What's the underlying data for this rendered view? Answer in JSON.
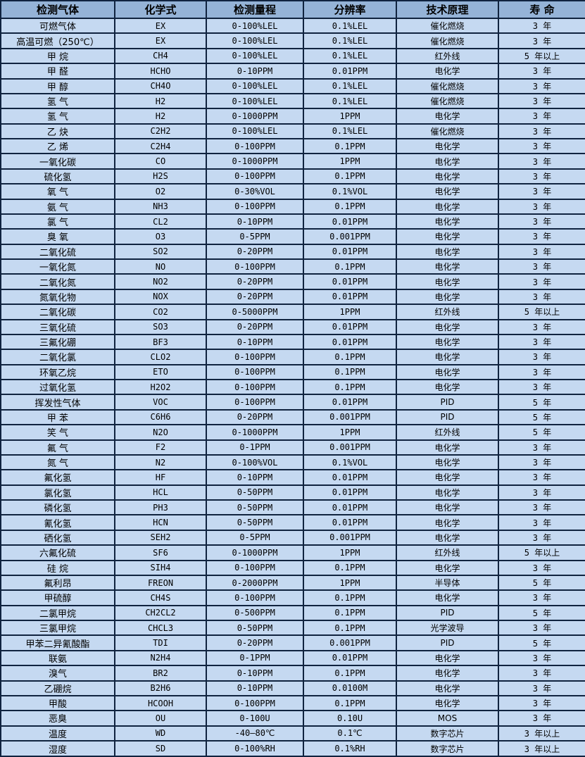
{
  "table": {
    "columns": [
      "检测气体",
      "化学式",
      "检测量程",
      "分辨率",
      "技术原理",
      "寿 命"
    ],
    "rows": [
      [
        "可燃气体",
        "EX",
        "0-100%LEL",
        "0.1%LEL",
        "催化燃烧",
        "3 年"
      ],
      [
        "高温可燃（250℃）",
        "EX",
        "0-100%LEL",
        "0.1%LEL",
        "催化燃烧",
        "3 年"
      ],
      [
        "甲 烷",
        "CH4",
        "0-100%LEL",
        "0.1%LEL",
        "红外线",
        "5 年以上"
      ],
      [
        "甲 醛",
        "HCHO",
        "0-10PPM",
        "0.01PPM",
        "电化学",
        "3 年"
      ],
      [
        "甲 醇",
        "CH4O",
        "0-100%LEL",
        "0.1%LEL",
        "催化燃烧",
        "3 年"
      ],
      [
        "氢 气",
        "H2",
        "0-100%LEL",
        "0.1%LEL",
        "催化燃烧",
        "3 年"
      ],
      [
        "氢 气",
        "H2",
        "0-1000PPM",
        "1PPM",
        "电化学",
        "3 年"
      ],
      [
        "乙 炔",
        "C2H2",
        "0-100%LEL",
        "0.1%LEL",
        "催化燃烧",
        "3 年"
      ],
      [
        "乙 烯",
        "C2H4",
        "0-100PPM",
        "0.1PPM",
        "电化学",
        "3 年"
      ],
      [
        "一氧化碳",
        "CO",
        "0-1000PPM",
        "1PPM",
        "电化学",
        "3 年"
      ],
      [
        "硫化氢",
        "H2S",
        "0-100PPM",
        "0.1PPM",
        "电化学",
        "3 年"
      ],
      [
        "氧 气",
        "O2",
        "0-30%VOL",
        "0.1%VOL",
        "电化学",
        "3 年"
      ],
      [
        "氨 气",
        "NH3",
        "0-100PPM",
        "0.1PPM",
        "电化学",
        "3 年"
      ],
      [
        "氯 气",
        "CL2",
        "0-10PPM",
        "0.01PPM",
        "电化学",
        "3 年"
      ],
      [
        "臭 氧",
        "O3",
        "0-5PPM",
        "0.001PPM",
        "电化学",
        "3 年"
      ],
      [
        "二氧化硫",
        "SO2",
        "0-20PPM",
        "0.01PPM",
        "电化学",
        "3 年"
      ],
      [
        "一氧化氮",
        "NO",
        "0-100PPM",
        "0.1PPM",
        "电化学",
        "3 年"
      ],
      [
        "二氧化氮",
        "NO2",
        "0-20PPM",
        "0.01PPM",
        "电化学",
        "3 年"
      ],
      [
        "氮氧化物",
        "NOX",
        "0-20PPM",
        "0.01PPM",
        "电化学",
        "3 年"
      ],
      [
        "二氧化碳",
        "CO2",
        "0-5000PPM",
        "1PPM",
        "红外线",
        "5 年以上"
      ],
      [
        "三氧化硫",
        "SO3",
        "0-20PPM",
        "0.01PPM",
        "电化学",
        "3 年"
      ],
      [
        "三氟化硼",
        "BF3",
        "0-10PPM",
        "0.01PPM",
        "电化学",
        "3 年"
      ],
      [
        "二氧化氯",
        "CLO2",
        "0-100PPM",
        "0.1PPM",
        "电化学",
        "3 年"
      ],
      [
        "环氧乙烷",
        "ETO",
        "0-100PPM",
        "0.1PPM",
        "电化学",
        "3 年"
      ],
      [
        "过氧化氢",
        "H2O2",
        "0-100PPM",
        "0.1PPM",
        "电化学",
        "3 年"
      ],
      [
        "挥发性气体",
        "VOC",
        "0-100PPM",
        "0.01PPM",
        "PID",
        "5 年"
      ],
      [
        "甲 苯",
        "C6H6",
        "0-20PPM",
        "0.001PPM",
        "PID",
        "5 年"
      ],
      [
        "笑 气",
        "N2O",
        "0-1000PPM",
        "1PPM",
        "红外线",
        "5 年"
      ],
      [
        "氟 气",
        "F2",
        "0-1PPM",
        "0.001PPM",
        "电化学",
        "3 年"
      ],
      [
        "氮 气",
        "N2",
        "0-100%VOL",
        "0.1%VOL",
        "电化学",
        "3 年"
      ],
      [
        "氟化氢",
        "HF",
        "0-10PPM",
        "0.01PPM",
        "电化学",
        "3 年"
      ],
      [
        "氯化氢",
        "HCL",
        "0-50PPM",
        "0.01PPM",
        "电化学",
        "3 年"
      ],
      [
        "磷化氢",
        "PH3",
        "0-50PPM",
        "0.01PPM",
        "电化学",
        "3 年"
      ],
      [
        "氰化氢",
        "HCN",
        "0-50PPM",
        "0.01PPM",
        "电化学",
        "3 年"
      ],
      [
        "硒化氢",
        "SEH2",
        "0-5PPM",
        "0.001PPM",
        "电化学",
        "3 年"
      ],
      [
        "六氟化硫",
        "SF6",
        "0-1000PPM",
        "1PPM",
        "红外线",
        "5 年以上"
      ],
      [
        "硅 烷",
        "SIH4",
        "0-100PPM",
        "0.1PPM",
        "电化学",
        "3 年"
      ],
      [
        "氟利昂",
        "FREON",
        "0-2000PPM",
        "1PPM",
        "半导体",
        "5 年"
      ],
      [
        "甲硫醇",
        "CH4S",
        "0-100PPM",
        "0.1PPM",
        "电化学",
        "3 年"
      ],
      [
        "二氯甲烷",
        "CH2CL2",
        "0-500PPM",
        "0.1PPM",
        "PID",
        "5 年"
      ],
      [
        "三氯甲烷",
        "CHCL3",
        "0-50PPM",
        "0.1PPM",
        "光学波导",
        "3 年"
      ],
      [
        "甲苯二异氰酸酯",
        "TDI",
        "0-20PPM",
        "0.001PPM",
        "PID",
        "5 年"
      ],
      [
        "联氨",
        "N2H4",
        "0-1PPM",
        "0.01PPM",
        "电化学",
        "3 年"
      ],
      [
        "溴气",
        "BR2",
        "0-10PPM",
        "0.1PPM",
        "电化学",
        "3 年"
      ],
      [
        "乙硼烷",
        "B2H6",
        "0-10PPM",
        "0.0100M",
        "电化学",
        "3 年"
      ],
      [
        "甲酸",
        "HCOOH",
        "0-100PPM",
        "0.1PPM",
        "电化学",
        "3 年"
      ],
      [
        "恶臭",
        "OU",
        "0-100U",
        "0.10U",
        "MOS",
        "3 年"
      ],
      [
        "温度",
        "WD",
        "-40—80℃",
        "0.1℃",
        "数字芯片",
        "3 年以上"
      ],
      [
        "湿度",
        "SD",
        "0-100%RH",
        "0.1%RH",
        "数字芯片",
        "3 年以上"
      ]
    ],
    "colors": {
      "header_bg": "#95b3d7",
      "row_bg": "#c5d9f1",
      "border": "#10233f",
      "text": "#000000"
    }
  }
}
